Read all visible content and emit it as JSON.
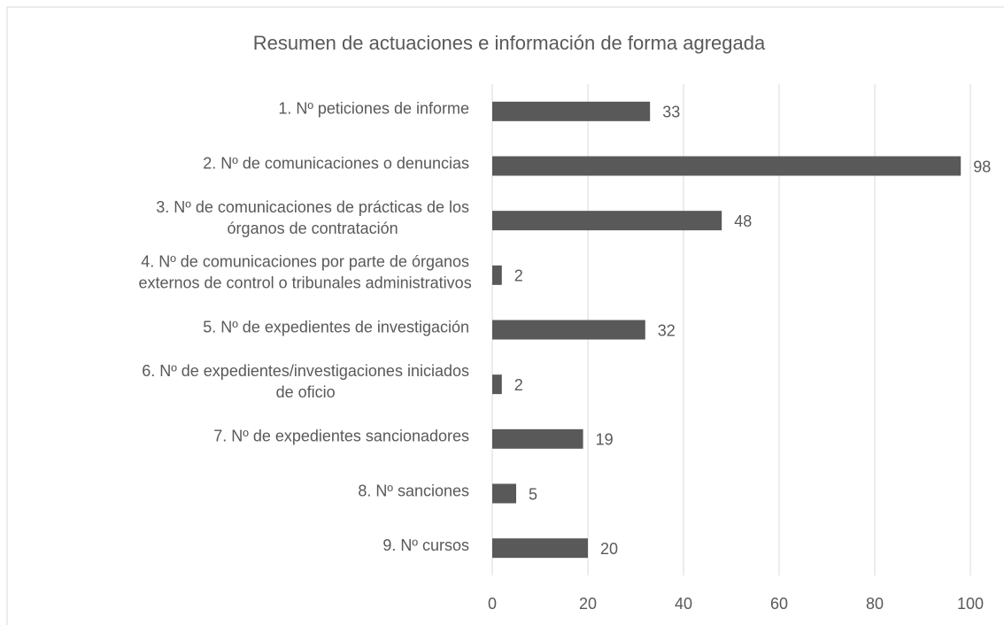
{
  "chart_data": {
    "type": "bar",
    "orientation": "horizontal",
    "title": "Resumen de actuaciones e información de forma agregada",
    "categories": [
      [
        "1. Nº peticiones de informe"
      ],
      [
        "2. Nº de comunicaciones o denuncias"
      ],
      [
        "3. Nº de comunicaciones de prácticas de los",
        "órganos de contratación"
      ],
      [
        "4. Nº de comunicaciones por parte de órganos",
        "externos de control o tribunales administrativos"
      ],
      [
        "5. Nº de expedientes de investigación"
      ],
      [
        "6. Nº de expedientes/investigaciones iniciados",
        "de oficio"
      ],
      [
        "7. Nº de expedientes sancionadores"
      ],
      [
        "8. Nº sanciones"
      ],
      [
        "9. Nº cursos"
      ]
    ],
    "values": [
      33,
      98,
      48,
      2,
      32,
      2,
      19,
      5,
      20
    ],
    "color": "#595959",
    "xlim": [
      0,
      100
    ],
    "xticks": [
      0,
      20,
      40,
      60,
      80,
      100
    ],
    "grid": true
  }
}
